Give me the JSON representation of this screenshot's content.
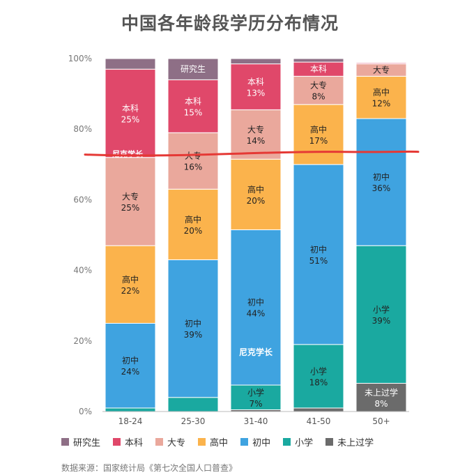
{
  "chart_data": {
    "type": "bar",
    "stacked": true,
    "title": "中国各年龄段学历分布情况",
    "categories": [
      "18-24",
      "25-30",
      "31-40",
      "41-50",
      "50+"
    ],
    "y_ticks": [
      "0%",
      "20%",
      "40%",
      "60%",
      "80%",
      "100%"
    ],
    "ylim": [
      0,
      100
    ],
    "legend_position": "bottom",
    "series": [
      {
        "name": "未上过学",
        "color": "#6b6b6b",
        "values": [
          0,
          0,
          0.5,
          1,
          8
        ]
      },
      {
        "name": "小学",
        "color": "#1aa9a0",
        "values": [
          1,
          4,
          7,
          18,
          39
        ]
      },
      {
        "name": "初中",
        "color": "#3fa3e0",
        "values": [
          24,
          39,
          44,
          51,
          36
        ]
      },
      {
        "name": "高中",
        "color": "#fbb34c",
        "values": [
          22,
          20,
          20,
          17,
          12
        ]
      },
      {
        "name": "大专",
        "color": "#eaa89c",
        "values": [
          25,
          16,
          14,
          8,
          3.5
        ]
      },
      {
        "name": "本科",
        "color": "#e0486a",
        "values": [
          25,
          15,
          13,
          4,
          0.3
        ]
      },
      {
        "name": "研究生",
        "color": "#8e6f86",
        "values": [
          3,
          6,
          1.5,
          1,
          0.2
        ]
      }
    ],
    "data_labels": [
      {
        "category": 0,
        "series": "本科",
        "line1": "本科",
        "line2": "25%"
      },
      {
        "category": 0,
        "series": "大专",
        "line1": "大专",
        "line2": "25%"
      },
      {
        "category": 0,
        "series": "高中",
        "line1": "高中",
        "line2": "22%"
      },
      {
        "category": 0,
        "series": "初中",
        "line1": "初中",
        "line2": "24%"
      },
      {
        "category": 1,
        "series": "研究生",
        "line1": "研究生",
        "line2": ""
      },
      {
        "category": 1,
        "series": "本科",
        "line1": "本科",
        "line2": "15%"
      },
      {
        "category": 1,
        "series": "大专",
        "line1": "大专",
        "line2": "16%"
      },
      {
        "category": 1,
        "series": "高中",
        "line1": "高中",
        "line2": "20%"
      },
      {
        "category": 1,
        "series": "初中",
        "line1": "初中",
        "line2": "39%"
      },
      {
        "category": 2,
        "series": "本科",
        "line1": "本科",
        "line2": "13%"
      },
      {
        "category": 2,
        "series": "大专",
        "line1": "大专",
        "line2": "14%"
      },
      {
        "category": 2,
        "series": "高中",
        "line1": "高中",
        "line2": "20%"
      },
      {
        "category": 2,
        "series": "初中",
        "line1": "初中",
        "line2": "44%"
      },
      {
        "category": 2,
        "series": "小学",
        "line1": "小学",
        "line2": "7%"
      },
      {
        "category": 3,
        "series": "本科",
        "line1": "本科",
        "line2": ""
      },
      {
        "category": 3,
        "series": "大专",
        "line1": "大专",
        "line2": "8%"
      },
      {
        "category": 3,
        "series": "高中",
        "line1": "高中",
        "line2": "17%"
      },
      {
        "category": 3,
        "series": "初中",
        "line1": "初中",
        "line2": "51%"
      },
      {
        "category": 3,
        "series": "小学",
        "line1": "小学",
        "line2": "18%"
      },
      {
        "category": 4,
        "series": "大专",
        "line1": "大专",
        "line2": ""
      },
      {
        "category": 4,
        "series": "高中",
        "line1": "高中",
        "line2": "12%"
      },
      {
        "category": 4,
        "series": "初中",
        "line1": "初中",
        "line2": "36%"
      },
      {
        "category": 4,
        "series": "小学",
        "line1": "小学",
        "line2": "39%"
      },
      {
        "category": 4,
        "series": "未上过学",
        "line1": "未上过学",
        "line2": "8%"
      }
    ],
    "annotation_line_percent": 73,
    "annotation_line_color": "#e53935",
    "watermark_text": "尼克学长"
  },
  "legend_order": [
    "研究生",
    "本科",
    "大专",
    "高中",
    "初中",
    "小学",
    "未上过学"
  ],
  "source_text": "数据来源：国家统计局《第七次全国人口普查》"
}
